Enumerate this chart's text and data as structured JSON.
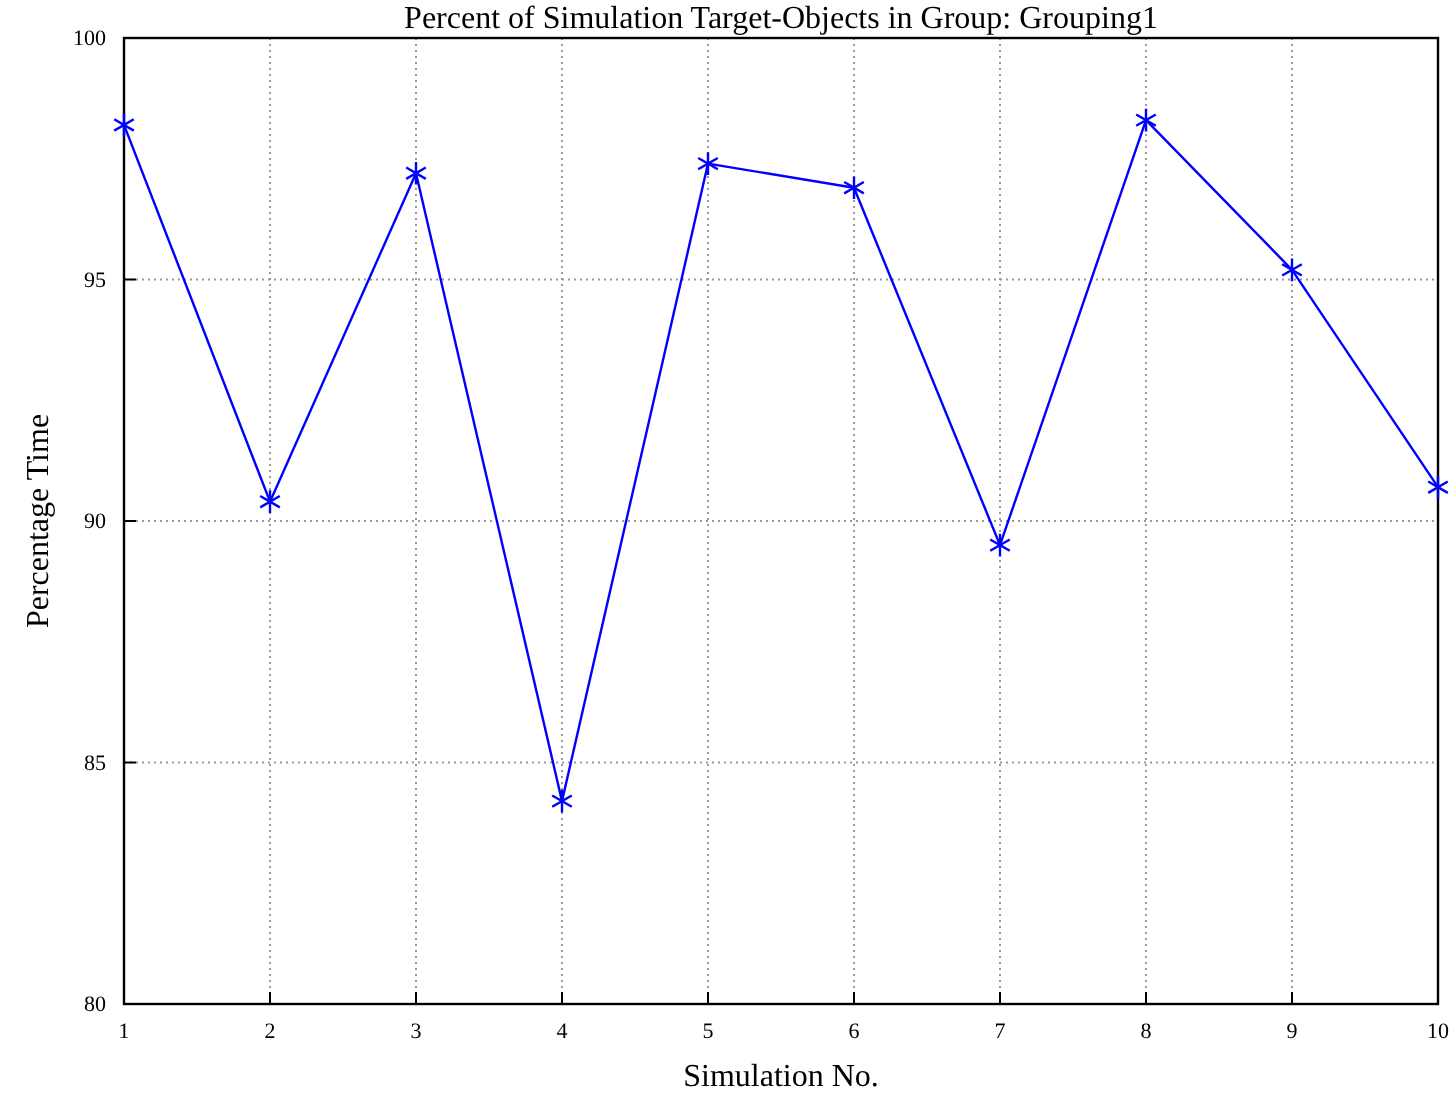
{
  "chart_data": {
    "type": "line",
    "title": "Percent of Simulation Target-Objects in Group: Grouping1",
    "xlabel": "Simulation No.",
    "ylabel": "Percentage Time",
    "x": [
      1,
      2,
      3,
      4,
      5,
      6,
      7,
      8,
      9,
      10
    ],
    "series": [
      {
        "color": "#0000ff",
        "values": [
          98.2,
          90.4,
          97.2,
          84.2,
          97.4,
          96.9,
          89.5,
          98.3,
          95.2,
          90.7
        ]
      }
    ],
    "xlim": [
      1,
      10
    ],
    "xticks": [
      1,
      2,
      3,
      4,
      5,
      6,
      7,
      8,
      9,
      10
    ],
    "ylim": [
      80,
      100
    ],
    "yticks": [
      80,
      85,
      90,
      95,
      100
    ],
    "grid": true,
    "marker": "cross",
    "line_style": "solid"
  }
}
